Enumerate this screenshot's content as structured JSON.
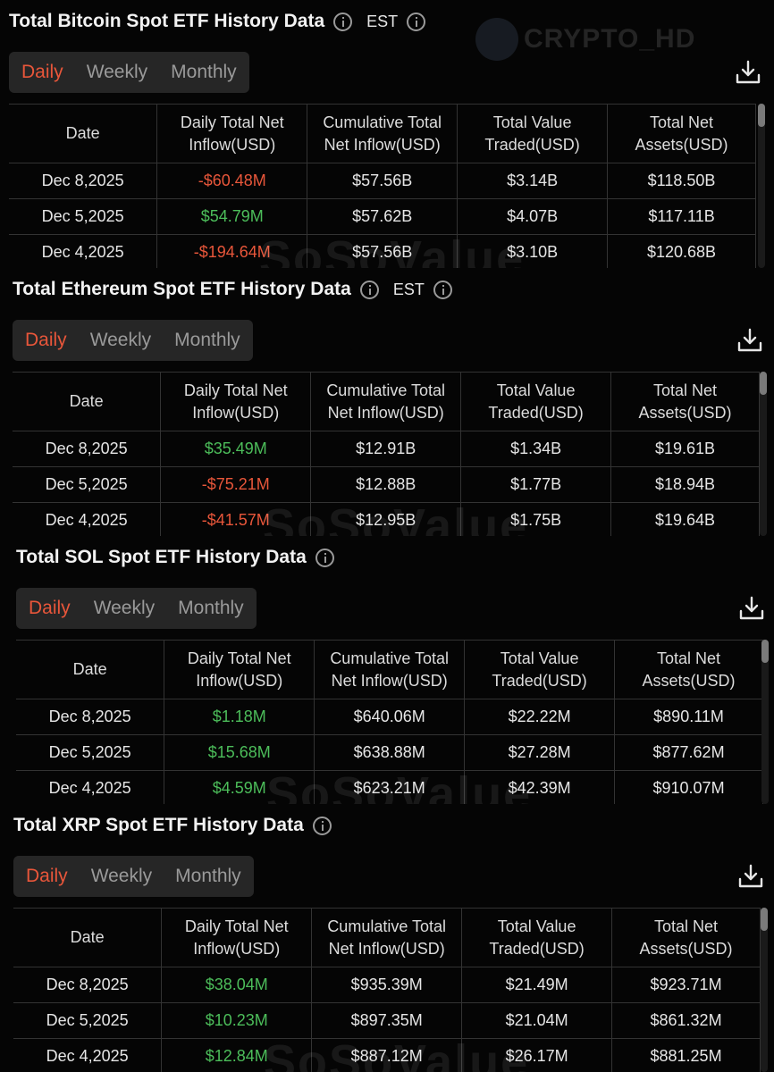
{
  "watermarks": {
    "top": "CRYPTO_HD",
    "table": "SoSoValue"
  },
  "colors": {
    "positive": "#4cbd5a",
    "negative": "#e8563a",
    "active_tab": "#e8563a"
  },
  "tabs": [
    "Daily",
    "Weekly",
    "Monthly"
  ],
  "columns": [
    [
      "Date",
      ""
    ],
    [
      "Daily Total Net",
      "Inflow(USD)"
    ],
    [
      "Cumulative Total",
      "Net Inflow(USD)"
    ],
    [
      "Total Value",
      "Traded(USD)"
    ],
    [
      "Total Net",
      "Assets(USD)"
    ]
  ],
  "panels": [
    {
      "title": "Total Bitcoin Spot ETF History Data",
      "timezone": "EST",
      "rows": [
        {
          "date": "Dec 8,2025",
          "daily": "-$60.48M",
          "sign": "neg",
          "cumulative": "$57.56B",
          "traded": "$3.14B",
          "assets": "$118.50B"
        },
        {
          "date": "Dec 5,2025",
          "daily": "$54.79M",
          "sign": "pos",
          "cumulative": "$57.62B",
          "traded": "$4.07B",
          "assets": "$117.11B"
        },
        {
          "date": "Dec 4,2025",
          "daily": "-$194.64M",
          "sign": "neg",
          "cumulative": "$57.56B",
          "traded": "$3.10B",
          "assets": "$120.68B"
        }
      ]
    },
    {
      "title": "Total Ethereum Spot ETF History Data",
      "timezone": "EST",
      "rows": [
        {
          "date": "Dec 8,2025",
          "daily": "$35.49M",
          "sign": "pos",
          "cumulative": "$12.91B",
          "traded": "$1.34B",
          "assets": "$19.61B"
        },
        {
          "date": "Dec 5,2025",
          "daily": "-$75.21M",
          "sign": "neg",
          "cumulative": "$12.88B",
          "traded": "$1.77B",
          "assets": "$18.94B"
        },
        {
          "date": "Dec 4,2025",
          "daily": "-$41.57M",
          "sign": "neg",
          "cumulative": "$12.95B",
          "traded": "$1.75B",
          "assets": "$19.64B"
        }
      ]
    },
    {
      "title": "Total SOL Spot ETF History Data",
      "timezone": "",
      "rows": [
        {
          "date": "Dec 8,2025",
          "daily": "$1.18M",
          "sign": "pos",
          "cumulative": "$640.06M",
          "traded": "$22.22M",
          "assets": "$890.11M"
        },
        {
          "date": "Dec 5,2025",
          "daily": "$15.68M",
          "sign": "pos",
          "cumulative": "$638.88M",
          "traded": "$27.28M",
          "assets": "$877.62M"
        },
        {
          "date": "Dec 4,2025",
          "daily": "$4.59M",
          "sign": "pos",
          "cumulative": "$623.21M",
          "traded": "$42.39M",
          "assets": "$910.07M"
        }
      ]
    },
    {
      "title": "Total XRP Spot ETF History Data",
      "timezone": "",
      "rows": [
        {
          "date": "Dec 8,2025",
          "daily": "$38.04M",
          "sign": "pos",
          "cumulative": "$935.39M",
          "traded": "$21.49M",
          "assets": "$923.71M"
        },
        {
          "date": "Dec 5,2025",
          "daily": "$10.23M",
          "sign": "pos",
          "cumulative": "$897.35M",
          "traded": "$21.04M",
          "assets": "$861.32M"
        },
        {
          "date": "Dec 4,2025",
          "daily": "$12.84M",
          "sign": "pos",
          "cumulative": "$887.12M",
          "traded": "$26.17M",
          "assets": "$881.25M"
        }
      ]
    }
  ]
}
